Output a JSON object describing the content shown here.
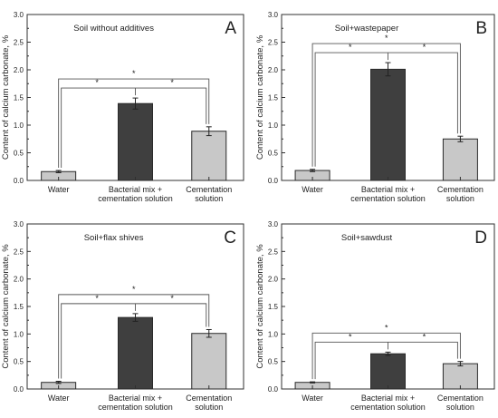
{
  "chart_data": [
    {
      "type": "bar",
      "panel_letter": "A",
      "title": "Soil without additives",
      "ylabel": "Content of calcium carbonate, %",
      "ylim": [
        0,
        3.0
      ],
      "yticks": [
        "0.0",
        "0.5",
        "1.0",
        "1.5",
        "2.0",
        "2.5",
        "3.0"
      ],
      "categories": [
        [
          "Water"
        ],
        [
          "Bacterial mix +",
          "cementation solution"
        ],
        [
          "Cementation",
          "solution"
        ]
      ],
      "values": [
        0.16,
        1.39,
        0.89
      ],
      "errors": [
        0.02,
        0.1,
        0.08
      ],
      "colors": [
        "#c8c8c8",
        "#3f3f3f",
        "#c8c8c8"
      ],
      "significance": [
        "*",
        "*",
        "*"
      ]
    },
    {
      "type": "bar",
      "panel_letter": "B",
      "title": "Soil+wastepaper",
      "ylabel": "Content of calcium carbonate, %",
      "ylim": [
        0,
        3.0
      ],
      "yticks": [
        "0.0",
        "0.5",
        "1.0",
        "1.5",
        "2.0",
        "2.5",
        "3.0"
      ],
      "categories": [
        [
          "Water"
        ],
        [
          "Bacterial mix +",
          "cementation solution"
        ],
        [
          "Cementation",
          "solution"
        ]
      ],
      "values": [
        0.18,
        2.01,
        0.75
      ],
      "errors": [
        0.02,
        0.12,
        0.05
      ],
      "colors": [
        "#c8c8c8",
        "#3f3f3f",
        "#c8c8c8"
      ],
      "significance": [
        "*",
        "*",
        "*"
      ]
    },
    {
      "type": "bar",
      "panel_letter": "C",
      "title": "Soil+flax shives",
      "ylabel": "Content of calcium carbonate, %",
      "ylim": [
        0,
        3.0
      ],
      "yticks": [
        "0.0",
        "0.5",
        "1.0",
        "1.5",
        "2.0",
        "2.5",
        "3.0"
      ],
      "categories": [
        [
          "Water"
        ],
        [
          "Bacterial mix +",
          "cementation solution"
        ],
        [
          "Cementation",
          "solution"
        ]
      ],
      "values": [
        0.12,
        1.3,
        1.01
      ],
      "errors": [
        0.02,
        0.07,
        0.07
      ],
      "colors": [
        "#c8c8c8",
        "#3f3f3f",
        "#c8c8c8"
      ],
      "significance": [
        "*",
        "*",
        "*"
      ]
    },
    {
      "type": "bar",
      "panel_letter": "D",
      "title": "Soil+sawdust",
      "ylabel": "Content of calcium carbonate, %",
      "ylim": [
        0,
        3.0
      ],
      "yticks": [
        "0.0",
        "0.5",
        "1.0",
        "1.5",
        "2.0",
        "2.5",
        "3.0"
      ],
      "categories": [
        [
          "Water"
        ],
        [
          "Bacterial mix +",
          "cementation solution"
        ],
        [
          "Cementation",
          "solution"
        ]
      ],
      "values": [
        0.12,
        0.64,
        0.46
      ],
      "errors": [
        0.01,
        0.03,
        0.04
      ],
      "colors": [
        "#c8c8c8",
        "#3f3f3f",
        "#c8c8c8"
      ],
      "significance": [
        "*",
        "*",
        "*"
      ]
    }
  ]
}
